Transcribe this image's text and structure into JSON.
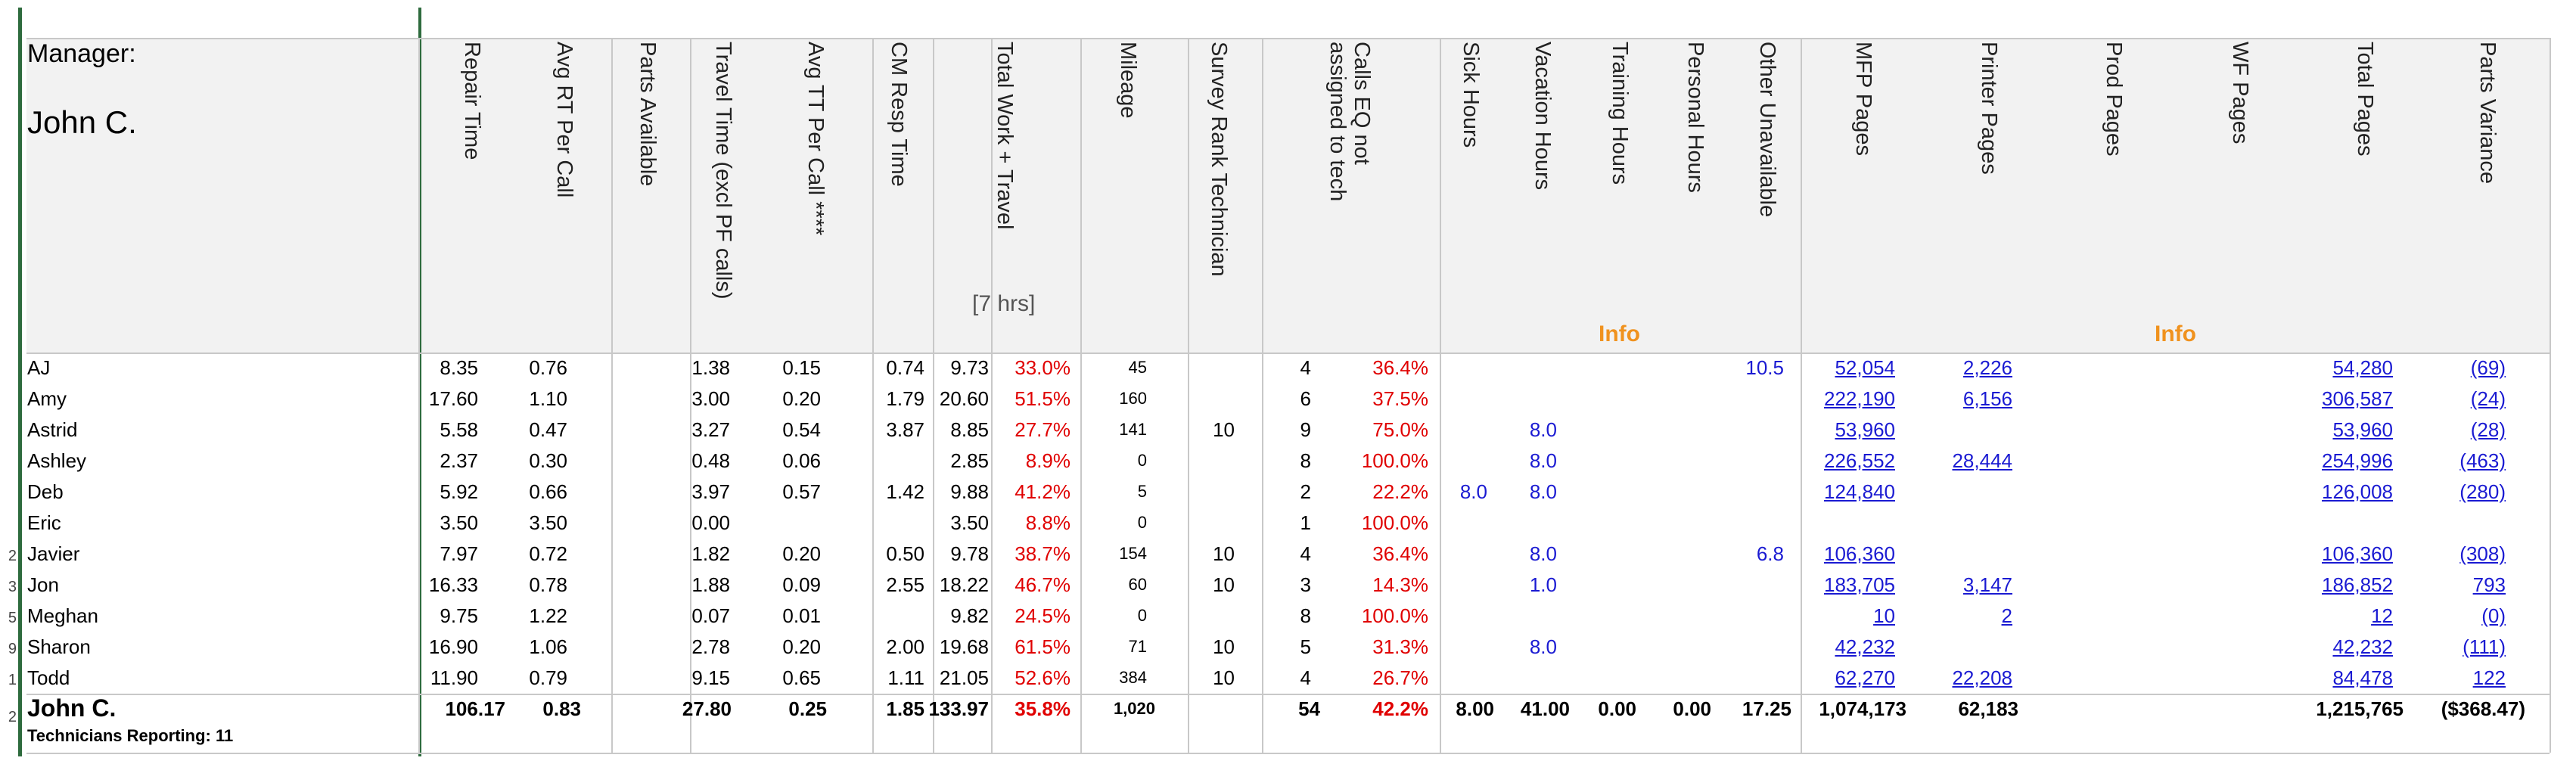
{
  "manager": {
    "label": "Manager:",
    "name": "John C."
  },
  "headers": {
    "repair_time": "Repair Time",
    "avg_rt": "Avg RT Per Call",
    "parts_available": "Parts Available",
    "travel_time": "Travel Time (excl PF calls)",
    "avg_tt": "Avg TT Per Call ****",
    "cm_resp": "CM Resp Time",
    "total_work": "Total Work + Travel",
    "seven_hrs": "[7 hrs]",
    "mileage": "Mileage",
    "survey_rank": "Survey Rank Technician",
    "calls_eq_1": "Calls EQ not",
    "calls_eq_2": "assigned to tech",
    "sick": "Sick Hours",
    "vacation": "Vacation Hours",
    "training": "Training Hours",
    "personal": "Personal Hours",
    "other_unavail": "Other Unavailable",
    "mfp_pages": "MFP Pages",
    "printer_pages": "Printer Pages",
    "prod_pages": "Prod Pages",
    "wf_pages": "WF Pages",
    "total_pages": "Total Pages",
    "parts_variance": "Parts Variance",
    "info1": "Info",
    "info2": "Info"
  },
  "row_numbers": [
    "2",
    "3",
    "5",
    "9",
    "1",
    "2"
  ],
  "rows": [
    {
      "name": "AJ",
      "repair": "8.35",
      "avg_rt": "0.76",
      "travel": "1.38",
      "avg_tt": "0.15",
      "cm": "0.74",
      "total": "9.73",
      "pct": "33.0%",
      "mileage": "45",
      "survey": "",
      "calls": "4",
      "calls_pct": "36.4%",
      "sick": "",
      "vac": "",
      "other": "10.5",
      "mfp": "52,054",
      "printer": "2,226",
      "total_pages": "54,280",
      "variance": "(69)"
    },
    {
      "name": "Amy",
      "repair": "17.60",
      "avg_rt": "1.10",
      "travel": "3.00",
      "avg_tt": "0.20",
      "cm": "1.79",
      "total": "20.60",
      "pct": "51.5%",
      "mileage": "160",
      "survey": "",
      "calls": "6",
      "calls_pct": "37.5%",
      "sick": "",
      "vac": "",
      "other": "",
      "mfp": "222,190",
      "printer": "6,156",
      "total_pages": "306,587",
      "variance": "(24)"
    },
    {
      "name": "Astrid",
      "repair": "5.58",
      "avg_rt": "0.47",
      "travel": "3.27",
      "avg_tt": "0.54",
      "cm": "3.87",
      "total": "8.85",
      "pct": "27.7%",
      "mileage": "141",
      "survey": "10",
      "calls": "9",
      "calls_pct": "75.0%",
      "sick": "",
      "vac": "8.0",
      "other": "",
      "mfp": "53,960",
      "printer": "",
      "total_pages": "53,960",
      "variance": "(28)"
    },
    {
      "name": "Ashley",
      "repair": "2.37",
      "avg_rt": "0.30",
      "travel": "0.48",
      "avg_tt": "0.06",
      "cm": "",
      "total": "2.85",
      "pct": "8.9%",
      "mileage": "0",
      "survey": "",
      "calls": "8",
      "calls_pct": "100.0%",
      "sick": "",
      "vac": "8.0",
      "other": "",
      "mfp": "226,552",
      "printer": "28,444",
      "total_pages": "254,996",
      "variance": "(463)"
    },
    {
      "name": "Deb",
      "repair": "5.92",
      "avg_rt": "0.66",
      "travel": "3.97",
      "avg_tt": "0.57",
      "cm": "1.42",
      "total": "9.88",
      "pct": "41.2%",
      "mileage": "5",
      "survey": "",
      "calls": "2",
      "calls_pct": "22.2%",
      "sick": "8.0",
      "vac": "8.0",
      "other": "",
      "mfp": "124,840",
      "printer": "",
      "total_pages": "126,008",
      "variance": "(280)"
    },
    {
      "name": "Eric",
      "repair": "3.50",
      "avg_rt": "3.50",
      "travel": "0.00",
      "avg_tt": "",
      "cm": "",
      "total": "3.50",
      "pct": "8.8%",
      "mileage": "0",
      "survey": "",
      "calls": "1",
      "calls_pct": "100.0%",
      "sick": "",
      "vac": "",
      "other": "",
      "mfp": "",
      "printer": "",
      "total_pages": "",
      "variance": ""
    },
    {
      "name": "Javier",
      "repair": "7.97",
      "avg_rt": "0.72",
      "travel": "1.82",
      "avg_tt": "0.20",
      "cm": "0.50",
      "total": "9.78",
      "pct": "38.7%",
      "mileage": "154",
      "survey": "10",
      "calls": "4",
      "calls_pct": "36.4%",
      "sick": "",
      "vac": "8.0",
      "other": "6.8",
      "mfp": "106,360",
      "printer": "",
      "total_pages": "106,360",
      "variance": "(308)"
    },
    {
      "name": "Jon",
      "repair": "16.33",
      "avg_rt": "0.78",
      "travel": "1.88",
      "avg_tt": "0.09",
      "cm": "2.55",
      "total": "18.22",
      "pct": "46.7%",
      "mileage": "60",
      "survey": "10",
      "calls": "3",
      "calls_pct": "14.3%",
      "sick": "",
      "vac": "1.0",
      "other": "",
      "mfp": "183,705",
      "printer": "3,147",
      "total_pages": "186,852",
      "variance": "793"
    },
    {
      "name": "Meghan",
      "repair": "9.75",
      "avg_rt": "1.22",
      "travel": "0.07",
      "avg_tt": "0.01",
      "cm": "",
      "total": "9.82",
      "pct": "24.5%",
      "mileage": "0",
      "survey": "",
      "calls": "8",
      "calls_pct": "100.0%",
      "sick": "",
      "vac": "",
      "other": "",
      "mfp": "10",
      "printer": "2",
      "total_pages": "12",
      "variance": "(0)"
    },
    {
      "name": "Sharon",
      "repair": "16.90",
      "avg_rt": "1.06",
      "travel": "2.78",
      "avg_tt": "0.20",
      "cm": "2.00",
      "total": "19.68",
      "pct": "61.5%",
      "mileage": "71",
      "survey": "10",
      "calls": "5",
      "calls_pct": "31.3%",
      "sick": "",
      "vac": "8.0",
      "other": "",
      "mfp": "42,232",
      "printer": "",
      "total_pages": "42,232",
      "variance": "(111)"
    },
    {
      "name": "Todd",
      "repair": "11.90",
      "avg_rt": "0.79",
      "travel": "9.15",
      "avg_tt": "0.65",
      "cm": "1.11",
      "total": "21.05",
      "pct": "52.6%",
      "mileage": "384",
      "survey": "10",
      "calls": "4",
      "calls_pct": "26.7%",
      "sick": "",
      "vac": "",
      "other": "",
      "mfp": "62,270",
      "printer": "22,208",
      "total_pages": "84,478",
      "variance": "122"
    }
  ],
  "totals": {
    "name": "John C.",
    "sub": "Technicians Reporting: 11",
    "repair": "106.17",
    "avg_rt": "0.83",
    "travel": "27.80",
    "avg_tt": "0.25",
    "cm": "1.85",
    "total": "133.97",
    "pct": "35.8%",
    "mileage": "1,020",
    "calls": "54",
    "calls_pct": "42.2%",
    "sick": "8.00",
    "vac": "41.00",
    "training": "0.00",
    "personal": "0.00",
    "other": "17.25",
    "mfp": "1,074,173",
    "printer": "62,183",
    "total_pages": "1,215,765",
    "variance": "($368.47)"
  }
}
